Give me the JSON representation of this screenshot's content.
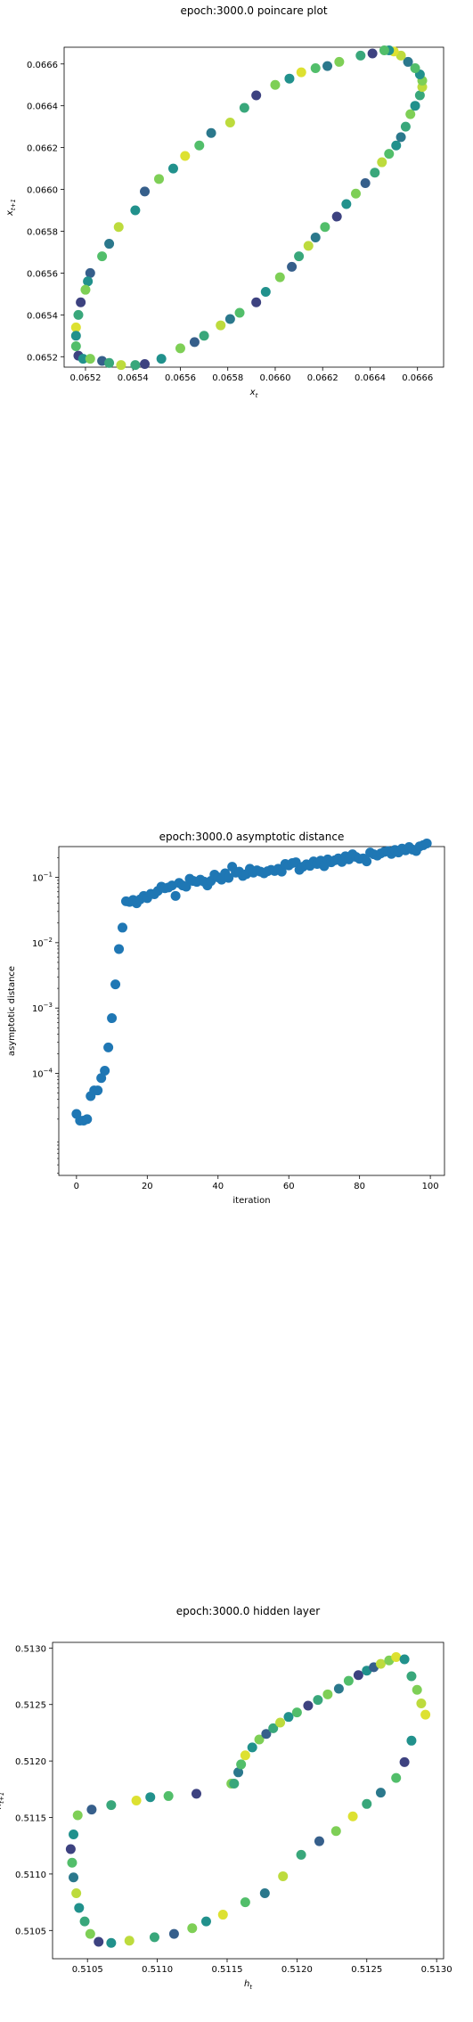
{
  "charts": [
    {
      "type": "scatter",
      "title": "epoch:3000.0 poincare plot",
      "xlabel": "x_t",
      "ylabel": "x_{t+1}",
      "xlim": [
        0.06511,
        0.06671
      ],
      "ylim": [
        0.06515,
        0.06668
      ],
      "xticks": [
        0.0652,
        0.0654,
        0.0656,
        0.0658,
        0.066,
        0.0662,
        0.0664,
        0.0666
      ],
      "yticks": [
        0.0652,
        0.0654,
        0.0656,
        0.0658,
        0.066,
        0.0662,
        0.0664,
        0.0666
      ],
      "tick_decimals": 4,
      "color_scale": "viridis",
      "marker": "circle",
      "points": [
        {
          "x": 0.06541,
          "y": 0.06516,
          "c": 0.6
        },
        {
          "x": 0.06545,
          "y": 0.065165,
          "c": 0.2
        },
        {
          "x": 0.06552,
          "y": 0.06519,
          "c": 0.5
        },
        {
          "x": 0.0656,
          "y": 0.06524,
          "c": 0.8
        },
        {
          "x": 0.06566,
          "y": 0.06527,
          "c": 0.3
        },
        {
          "x": 0.0657,
          "y": 0.0653,
          "c": 0.6
        },
        {
          "x": 0.06577,
          "y": 0.06535,
          "c": 0.9
        },
        {
          "x": 0.06581,
          "y": 0.06538,
          "c": 0.4
        },
        {
          "x": 0.06585,
          "y": 0.06541,
          "c": 0.7
        },
        {
          "x": 0.06592,
          "y": 0.06546,
          "c": 0.2
        },
        {
          "x": 0.06596,
          "y": 0.06551,
          "c": 0.5
        },
        {
          "x": 0.06602,
          "y": 0.06558,
          "c": 0.8
        },
        {
          "x": 0.06607,
          "y": 0.06563,
          "c": 0.3
        },
        {
          "x": 0.0661,
          "y": 0.06568,
          "c": 0.6
        },
        {
          "x": 0.06614,
          "y": 0.06573,
          "c": 0.9
        },
        {
          "x": 0.06617,
          "y": 0.06577,
          "c": 0.4
        },
        {
          "x": 0.06621,
          "y": 0.06582,
          "c": 0.7
        },
        {
          "x": 0.06626,
          "y": 0.06587,
          "c": 0.2
        },
        {
          "x": 0.0663,
          "y": 0.06593,
          "c": 0.5
        },
        {
          "x": 0.06634,
          "y": 0.06598,
          "c": 0.8
        },
        {
          "x": 0.06638,
          "y": 0.06603,
          "c": 0.3
        },
        {
          "x": 0.06642,
          "y": 0.06608,
          "c": 0.6
        },
        {
          "x": 0.06645,
          "y": 0.06613,
          "c": 0.9
        },
        {
          "x": 0.06648,
          "y": 0.06617,
          "c": 0.7
        },
        {
          "x": 0.06651,
          "y": 0.06621,
          "c": 0.5
        },
        {
          "x": 0.06653,
          "y": 0.06625,
          "c": 0.4
        },
        {
          "x": 0.06655,
          "y": 0.0663,
          "c": 0.6
        },
        {
          "x": 0.06657,
          "y": 0.06636,
          "c": 0.8
        },
        {
          "x": 0.06659,
          "y": 0.0664,
          "c": 0.5
        },
        {
          "x": 0.06661,
          "y": 0.06645,
          "c": 0.6
        },
        {
          "x": 0.06662,
          "y": 0.06649,
          "c": 0.9
        },
        {
          "x": 0.06662,
          "y": 0.06652,
          "c": 0.8
        },
        {
          "x": 0.06661,
          "y": 0.06655,
          "c": 0.5
        },
        {
          "x": 0.06659,
          "y": 0.06658,
          "c": 0.7
        },
        {
          "x": 0.06656,
          "y": 0.06661,
          "c": 0.4
        },
        {
          "x": 0.06653,
          "y": 0.06664,
          "c": 0.9
        },
        {
          "x": 0.0665,
          "y": 0.06666,
          "c": 0.95
        },
        {
          "x": 0.06648,
          "y": 0.066665,
          "c": 0.5
        },
        {
          "x": 0.06646,
          "y": 0.066665,
          "c": 0.7
        },
        {
          "x": 0.06641,
          "y": 0.06665,
          "c": 0.2
        },
        {
          "x": 0.06636,
          "y": 0.06664,
          "c": 0.6
        },
        {
          "x": 0.06627,
          "y": 0.06661,
          "c": 0.8
        },
        {
          "x": 0.06622,
          "y": 0.06659,
          "c": 0.4
        },
        {
          "x": 0.06617,
          "y": 0.06658,
          "c": 0.7
        },
        {
          "x": 0.06611,
          "y": 0.06656,
          "c": 0.95
        },
        {
          "x": 0.06606,
          "y": 0.06653,
          "c": 0.5
        },
        {
          "x": 0.066,
          "y": 0.0665,
          "c": 0.8
        },
        {
          "x": 0.06592,
          "y": 0.06645,
          "c": 0.2
        },
        {
          "x": 0.06587,
          "y": 0.06639,
          "c": 0.6
        },
        {
          "x": 0.06581,
          "y": 0.06632,
          "c": 0.9
        },
        {
          "x": 0.06573,
          "y": 0.06627,
          "c": 0.4
        },
        {
          "x": 0.06568,
          "y": 0.06621,
          "c": 0.7
        },
        {
          "x": 0.06562,
          "y": 0.06616,
          "c": 0.95
        },
        {
          "x": 0.06557,
          "y": 0.0661,
          "c": 0.5
        },
        {
          "x": 0.06551,
          "y": 0.06605,
          "c": 0.8
        },
        {
          "x": 0.06545,
          "y": 0.06599,
          "c": 0.3
        },
        {
          "x": 0.06541,
          "y": 0.0659,
          "c": 0.5
        },
        {
          "x": 0.06534,
          "y": 0.06582,
          "c": 0.9
        },
        {
          "x": 0.0653,
          "y": 0.06574,
          "c": 0.4
        },
        {
          "x": 0.06527,
          "y": 0.06568,
          "c": 0.7
        },
        {
          "x": 0.06522,
          "y": 0.0656,
          "c": 0.3
        },
        {
          "x": 0.06521,
          "y": 0.06556,
          "c": 0.5
        },
        {
          "x": 0.0652,
          "y": 0.06552,
          "c": 0.8
        },
        {
          "x": 0.06518,
          "y": 0.06546,
          "c": 0.2
        },
        {
          "x": 0.06517,
          "y": 0.0654,
          "c": 0.6
        },
        {
          "x": 0.06516,
          "y": 0.06534,
          "c": 0.95
        },
        {
          "x": 0.06516,
          "y": 0.0653,
          "c": 0.5
        },
        {
          "x": 0.06516,
          "y": 0.06525,
          "c": 0.7
        },
        {
          "x": 0.06517,
          "y": 0.065205,
          "c": 0.2
        },
        {
          "x": 0.06519,
          "y": 0.06519,
          "c": 0.5
        },
        {
          "x": 0.06522,
          "y": 0.06519,
          "c": 0.8
        },
        {
          "x": 0.06527,
          "y": 0.06518,
          "c": 0.3
        },
        {
          "x": 0.0653,
          "y": 0.06517,
          "c": 0.6
        },
        {
          "x": 0.06535,
          "y": 0.06516,
          "c": 0.9
        }
      ]
    },
    {
      "type": "scatter",
      "title": "epoch:3000.0 asymptotic distance",
      "xlabel": "iteration",
      "ylabel": "asymptotic distance",
      "xlim": [
        -5,
        104
      ],
      "ylog": true,
      "ylim_log": [
        -5.56,
        -0.53
      ],
      "xticks": [
        0,
        20,
        40,
        60,
        80,
        100
      ],
      "yticks_exp": [
        -4,
        -3,
        -2,
        -1
      ],
      "color": "#1f77b4",
      "marker": "circle",
      "values": [
        2.4e-05,
        1.9e-05,
        1.9e-05,
        2e-05,
        4.5e-05,
        5.5e-05,
        5.5e-05,
        8.5e-05,
        0.00011,
        0.00025,
        0.0007,
        0.0023,
        0.008,
        0.017,
        0.043,
        0.042,
        0.045,
        0.04,
        0.046,
        0.052,
        0.048,
        0.056,
        0.055,
        0.062,
        0.072,
        0.068,
        0.07,
        0.075,
        0.052,
        0.082,
        0.075,
        0.072,
        0.095,
        0.088,
        0.085,
        0.092,
        0.086,
        0.075,
        0.088,
        0.11,
        0.1,
        0.092,
        0.115,
        0.098,
        0.145,
        0.118,
        0.122,
        0.105,
        0.112,
        0.135,
        0.118,
        0.128,
        0.122,
        0.115,
        0.124,
        0.13,
        0.125,
        0.135,
        0.122,
        0.16,
        0.152,
        0.165,
        0.17,
        0.13,
        0.145,
        0.158,
        0.15,
        0.175,
        0.16,
        0.18,
        0.148,
        0.188,
        0.17,
        0.182,
        0.195,
        0.172,
        0.21,
        0.188,
        0.225,
        0.205,
        0.192,
        0.195,
        0.175,
        0.24,
        0.225,
        0.215,
        0.232,
        0.245,
        0.252,
        0.228,
        0.262,
        0.24,
        0.275,
        0.258,
        0.29,
        0.265,
        0.252,
        0.298,
        0.31,
        0.33
      ]
    },
    {
      "type": "scatter",
      "title": "epoch:3000.0 hidden layer",
      "xlabel": "h_t",
      "ylabel": "h_{t+1}",
      "xlim": [
        0.51025,
        0.51305
      ],
      "ylim": [
        0.51025,
        0.51305
      ],
      "xticks": [
        0.5105,
        0.511,
        0.5115,
        0.512,
        0.5125,
        0.513
      ],
      "yticks": [
        0.5105,
        0.511,
        0.5115,
        0.512,
        0.5125,
        0.513
      ],
      "tick_decimals": 4,
      "color_scale": "viridis",
      "marker": "circle",
      "points": [
        {
          "x": 0.51038,
          "y": 0.51122,
          "c": 0.2
        },
        {
          "x": 0.5104,
          "y": 0.51135,
          "c": 0.5
        },
        {
          "x": 0.51043,
          "y": 0.51152,
          "c": 0.8
        },
        {
          "x": 0.51053,
          "y": 0.51157,
          "c": 0.3
        },
        {
          "x": 0.51067,
          "y": 0.51161,
          "c": 0.6
        },
        {
          "x": 0.51085,
          "y": 0.51165,
          "c": 0.95
        },
        {
          "x": 0.51095,
          "y": 0.51168,
          "c": 0.5
        },
        {
          "x": 0.51108,
          "y": 0.51169,
          "c": 0.7
        },
        {
          "x": 0.51128,
          "y": 0.51171,
          "c": 0.2
        },
        {
          "x": 0.51153,
          "y": 0.5118,
          "c": 0.8
        },
        {
          "x": 0.51155,
          "y": 0.5118,
          "c": 0.6
        },
        {
          "x": 0.51158,
          "y": 0.5119,
          "c": 0.4
        },
        {
          "x": 0.5116,
          "y": 0.51197,
          "c": 0.7
        },
        {
          "x": 0.51163,
          "y": 0.51205,
          "c": 0.95
        },
        {
          "x": 0.51168,
          "y": 0.51212,
          "c": 0.5
        },
        {
          "x": 0.51173,
          "y": 0.51219,
          "c": 0.8
        },
        {
          "x": 0.51178,
          "y": 0.51224,
          "c": 0.3
        },
        {
          "x": 0.51183,
          "y": 0.51229,
          "c": 0.6
        },
        {
          "x": 0.51188,
          "y": 0.51234,
          "c": 0.9
        },
        {
          "x": 0.51194,
          "y": 0.51239,
          "c": 0.5
        },
        {
          "x": 0.512,
          "y": 0.51243,
          "c": 0.7
        },
        {
          "x": 0.51208,
          "y": 0.51249,
          "c": 0.2
        },
        {
          "x": 0.51215,
          "y": 0.51254,
          "c": 0.6
        },
        {
          "x": 0.51222,
          "y": 0.51259,
          "c": 0.8
        },
        {
          "x": 0.5123,
          "y": 0.51264,
          "c": 0.4
        },
        {
          "x": 0.51237,
          "y": 0.51271,
          "c": 0.7
        },
        {
          "x": 0.51244,
          "y": 0.51276,
          "c": 0.2
        },
        {
          "x": 0.5125,
          "y": 0.5128,
          "c": 0.5
        },
        {
          "x": 0.51255,
          "y": 0.51283,
          "c": 0.3
        },
        {
          "x": 0.5126,
          "y": 0.51286,
          "c": 0.9
        },
        {
          "x": 0.51266,
          "y": 0.51289,
          "c": 0.8
        },
        {
          "x": 0.51271,
          "y": 0.51292,
          "c": 0.95
        },
        {
          "x": 0.51277,
          "y": 0.5129,
          "c": 0.5
        },
        {
          "x": 0.51282,
          "y": 0.51275,
          "c": 0.6
        },
        {
          "x": 0.51286,
          "y": 0.51263,
          "c": 0.8
        },
        {
          "x": 0.51289,
          "y": 0.51251,
          "c": 0.9
        },
        {
          "x": 0.51292,
          "y": 0.51241,
          "c": 0.95
        },
        {
          "x": 0.51282,
          "y": 0.51218,
          "c": 0.5
        },
        {
          "x": 0.51277,
          "y": 0.51199,
          "c": 0.2
        },
        {
          "x": 0.51271,
          "y": 0.51185,
          "c": 0.7
        },
        {
          "x": 0.5126,
          "y": 0.51172,
          "c": 0.4
        },
        {
          "x": 0.5125,
          "y": 0.51162,
          "c": 0.6
        },
        {
          "x": 0.5124,
          "y": 0.51151,
          "c": 0.95
        },
        {
          "x": 0.51228,
          "y": 0.51138,
          "c": 0.8
        },
        {
          "x": 0.51216,
          "y": 0.51129,
          "c": 0.3
        },
        {
          "x": 0.51203,
          "y": 0.51117,
          "c": 0.6
        },
        {
          "x": 0.5119,
          "y": 0.51098,
          "c": 0.9
        },
        {
          "x": 0.51177,
          "y": 0.51083,
          "c": 0.4
        },
        {
          "x": 0.51163,
          "y": 0.51075,
          "c": 0.7
        },
        {
          "x": 0.51147,
          "y": 0.51064,
          "c": 0.95
        },
        {
          "x": 0.51135,
          "y": 0.51058,
          "c": 0.5
        },
        {
          "x": 0.51125,
          "y": 0.51052,
          "c": 0.8
        },
        {
          "x": 0.51112,
          "y": 0.51047,
          "c": 0.3
        },
        {
          "x": 0.51098,
          "y": 0.51044,
          "c": 0.6
        },
        {
          "x": 0.5108,
          "y": 0.51041,
          "c": 0.9
        },
        {
          "x": 0.51067,
          "y": 0.51039,
          "c": 0.5
        },
        {
          "x": 0.51058,
          "y": 0.5104,
          "c": 0.2
        },
        {
          "x": 0.51052,
          "y": 0.51047,
          "c": 0.8
        },
        {
          "x": 0.51048,
          "y": 0.51058,
          "c": 0.6
        },
        {
          "x": 0.51044,
          "y": 0.5107,
          "c": 0.5
        },
        {
          "x": 0.51042,
          "y": 0.51083,
          "c": 0.9
        },
        {
          "x": 0.5104,
          "y": 0.51097,
          "c": 0.4
        },
        {
          "x": 0.51039,
          "y": 0.5111,
          "c": 0.7
        }
      ]
    }
  ]
}
